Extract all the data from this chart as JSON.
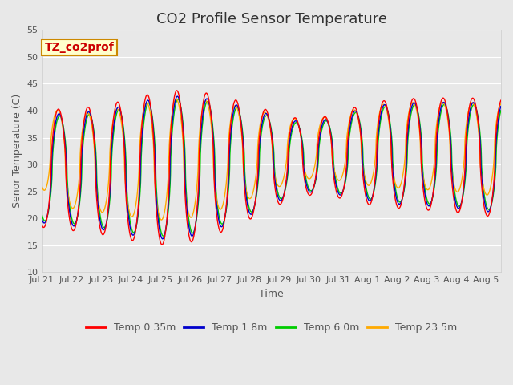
{
  "title": "CO2 Profile Sensor Temperature",
  "xlabel": "Time",
  "ylabel": "Senor Temperature (C)",
  "ylim": [
    10,
    55
  ],
  "xlim_days": 15.5,
  "tick_labels": [
    "Jul 21",
    "Jul 22",
    "Jul 23",
    "Jul 24",
    "Jul 25",
    "Jul 26",
    "Jul 27",
    "Jul 28",
    "Jul 29",
    "Jul 30",
    "Jul 31",
    "Aug 1",
    "Aug 2",
    "Aug 3",
    "Aug 4",
    "Aug 5"
  ],
  "annotation_text": "TZ_co2prof",
  "annotation_bgcolor": "#ffffcc",
  "annotation_edgecolor": "#cc8800",
  "background_color": "#e8e8e8",
  "plot_bg_color": "#e8e8e8",
  "grid_color": "#ffffff",
  "line_colors": [
    "#ff0000",
    "#0000cc",
    "#00cc00",
    "#ffaa00"
  ],
  "line_labels": [
    "Temp 0.35m",
    "Temp 1.8m",
    "Temp 6.0m",
    "Temp 23.5m"
  ],
  "title_fontsize": 13,
  "label_fontsize": 9,
  "tick_fontsize": 8,
  "legend_fontsize": 9,
  "yticks": [
    10,
    15,
    20,
    25,
    30,
    35,
    40,
    45,
    50,
    55
  ]
}
